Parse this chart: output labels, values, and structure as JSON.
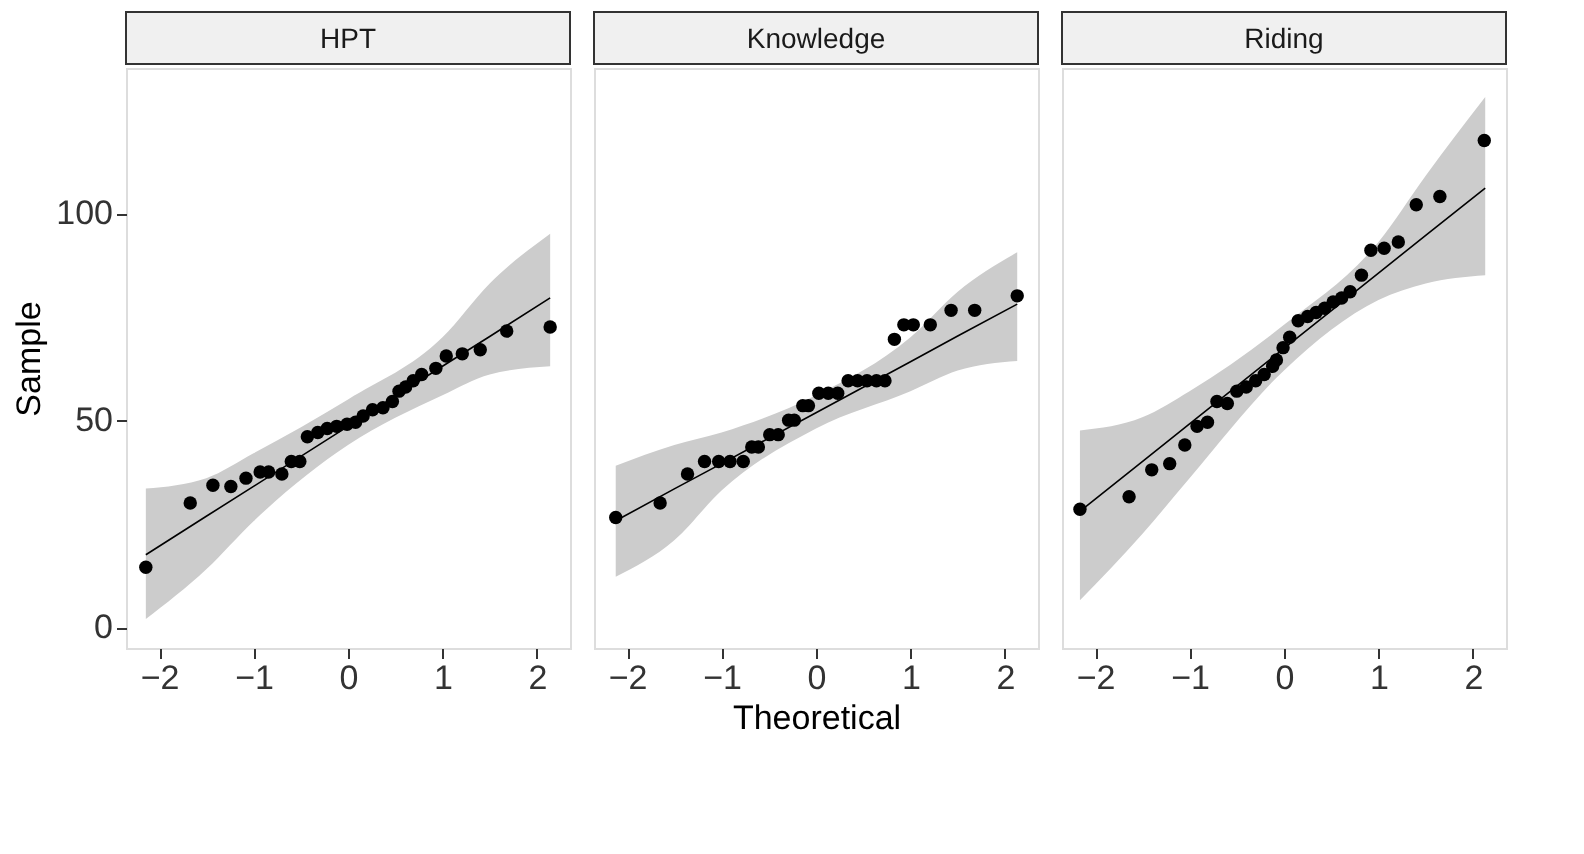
{
  "chart_data": [
    {
      "type": "scatter",
      "title": "HPT",
      "ylabel": "Sample",
      "xlim": [
        -2.35,
        2.35
      ],
      "ylim": [
        -5,
        135
      ],
      "xticks": [
        -2,
        -1,
        0,
        1,
        2
      ],
      "yticks": [
        0,
        50,
        100
      ],
      "grid": false,
      "series": [
        {
          "marker": "circle",
          "color": "#000000",
          "x": [
            -2.14,
            -1.67,
            -1.43,
            -1.24,
            -1.08,
            -0.93,
            -0.84,
            -0.7,
            -0.6,
            -0.51,
            -0.43,
            -0.32,
            -0.22,
            -0.12,
            -0.01,
            0.08,
            0.16,
            0.26,
            0.37,
            0.47,
            0.54,
            0.61,
            0.69,
            0.78,
            0.93,
            1.04,
            1.21,
            1.4,
            1.68,
            2.14
          ],
          "values": [
            14.5,
            30,
            34.3,
            34,
            36,
            37.5,
            37.5,
            37,
            40,
            40,
            46,
            47,
            48,
            48.5,
            49,
            49.5,
            51,
            52.5,
            53,
            54.5,
            57,
            58,
            59.5,
            61,
            62.5,
            65.5,
            66,
            67,
            71.5,
            72.5
          ]
        },
        {
          "type": "line",
          "color": "#000000",
          "x": [
            -2.14,
            -1.5,
            -1,
            0,
            1,
            1.5,
            2.14
          ],
          "values": [
            17.5,
            26.8,
            34,
            48.5,
            63,
            70.2,
            79.5
          ],
          "lower": [
            2,
            14,
            25.6,
            44,
            56,
            61,
            63
          ],
          "upper": [
            33.5,
            36,
            42,
            55,
            70,
            83,
            95
          ]
        }
      ]
    },
    {
      "type": "scatter",
      "title": "Knowledge",
      "xlabel": "Theoretical",
      "xlim": [
        -2.35,
        2.35
      ],
      "ylim": [
        -5,
        135
      ],
      "xticks": [
        -2,
        -1,
        0,
        1,
        2
      ],
      "yticks": [
        0,
        50,
        100
      ],
      "tick_labels": "x",
      "grid": false,
      "series": [
        {
          "marker": "circle",
          "color": "#000000",
          "x": [
            -2.12,
            -1.65,
            -1.36,
            -1.18,
            -1.03,
            -0.91,
            -0.77,
            -0.68,
            -0.61,
            -0.49,
            -0.4,
            -0.29,
            -0.23,
            -0.14,
            -0.08,
            0.03,
            0.13,
            0.23,
            0.34,
            0.44,
            0.54,
            0.64,
            0.73,
            0.83,
            0.93,
            1.03,
            1.21,
            1.43,
            1.68,
            2.13
          ],
          "values": [
            26.5,
            30,
            37,
            40,
            40,
            40,
            40,
            43.5,
            43.5,
            46.5,
            46.5,
            50,
            50,
            53.5,
            53.5,
            56.5,
            56.5,
            56.5,
            59.5,
            59.5,
            59.5,
            59.5,
            59.5,
            69.5,
            73,
            73,
            73,
            76.5,
            76.5,
            80
          ]
        },
        {
          "type": "line",
          "color": "#000000",
          "x": [
            -2.12,
            -1.5,
            -1,
            0,
            1,
            1.5,
            2.13
          ],
          "values": [
            25.7,
            33.4,
            39.5,
            51.8,
            64.1,
            70.3,
            78
          ],
          "lower": [
            12.2,
            21,
            33,
            48,
            57,
            62,
            64.3
          ],
          "upper": [
            39,
            44,
            47,
            56,
            70,
            81,
            90.5
          ]
        }
      ]
    },
    {
      "type": "scatter",
      "title": "Riding",
      "xlim": [
        -2.35,
        2.35
      ],
      "ylim": [
        -5,
        135
      ],
      "xticks": [
        -2,
        -1,
        0,
        1,
        2
      ],
      "yticks": [
        0,
        50,
        100
      ],
      "tick_labels": "x",
      "grid": false,
      "series": [
        {
          "marker": "circle",
          "color": "#000000",
          "x": [
            -2.16,
            -1.64,
            -1.4,
            -1.21,
            -1.05,
            -0.92,
            -0.81,
            -0.71,
            -0.6,
            -0.5,
            -0.4,
            -0.3,
            -0.21,
            -0.12,
            -0.08,
            -0.01,
            0.06,
            0.15,
            0.25,
            0.34,
            0.43,
            0.52,
            0.61,
            0.7,
            0.82,
            0.92,
            1.06,
            1.21,
            1.4,
            1.65,
            2.12
          ],
          "values": [
            28.5,
            31.5,
            38,
            39.5,
            44,
            48.5,
            49.5,
            54.5,
            54,
            57,
            58,
            59.5,
            61,
            63,
            64.5,
            67.5,
            70,
            74,
            75,
            76,
            77,
            78.5,
            79.5,
            81,
            85,
            91,
            91.5,
            93,
            102,
            104,
            117.5
          ]
        },
        {
          "type": "line",
          "color": "#000000",
          "x": [
            -2.16,
            -1.5,
            -1,
            0,
            1,
            1.5,
            2.13
          ],
          "values": [
            28,
            40,
            49.1,
            67.3,
            85.5,
            94.6,
            106
          ],
          "lower": [
            6.5,
            22.5,
            36,
            62,
            79,
            83,
            85
          ],
          "upper": [
            47.5,
            50.7,
            57,
            73,
            93,
            109,
            128
          ]
        }
      ]
    }
  ]
}
